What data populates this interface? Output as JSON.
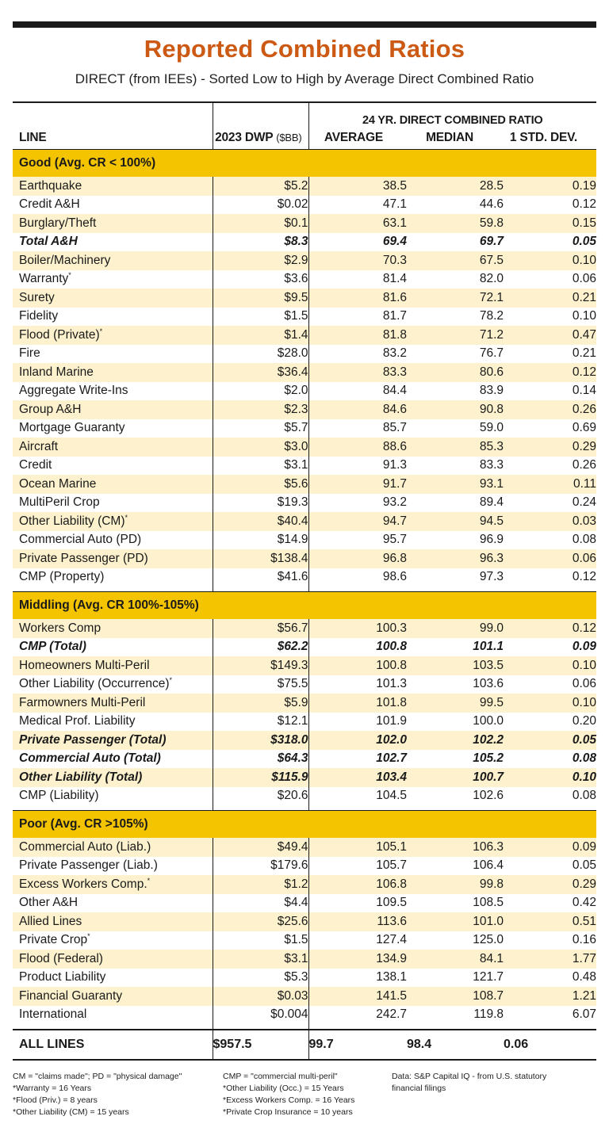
{
  "title": "Reported Combined Ratios",
  "subtitle": "DIRECT (from IEEs) - Sorted Low to High by Average Direct Combined Ratio",
  "header": {
    "span_label": "24 YR. DIRECT COMBINED RATIO",
    "line": "LINE",
    "dwp": "2023 DWP",
    "dwp_unit": "($BB)",
    "average": "AVERAGE",
    "median": "MEDIAN",
    "std": "1 STD. DEV."
  },
  "sections": [
    {
      "name": "Good (Avg. CR < 100%)",
      "rows": [
        {
          "line": "Earthquake",
          "sup": "",
          "dwp": "$5.2",
          "avg": "38.5",
          "median": "28.5",
          "std": "0.19",
          "bold": false
        },
        {
          "line": "Credit A&H",
          "sup": "",
          "dwp": "$0.02",
          "avg": "47.1",
          "median": "44.6",
          "std": "0.12",
          "bold": false
        },
        {
          "line": "Burglary/Theft",
          "sup": "",
          "dwp": "$0.1",
          "avg": "63.1",
          "median": "59.8",
          "std": "0.15",
          "bold": false
        },
        {
          "line": "Total A&H",
          "sup": "",
          "dwp": "$8.3",
          "avg": "69.4",
          "median": "69.7",
          "std": "0.05",
          "bold": true
        },
        {
          "line": "Boiler/Machinery",
          "sup": "",
          "dwp": "$2.9",
          "avg": "70.3",
          "median": "67.5",
          "std": "0.10",
          "bold": false
        },
        {
          "line": "Warranty",
          "sup": "*",
          "dwp": "$3.6",
          "avg": "81.4",
          "median": "82.0",
          "std": "0.06",
          "bold": false
        },
        {
          "line": "Surety",
          "sup": "",
          "dwp": "$9.5",
          "avg": "81.6",
          "median": "72.1",
          "std": "0.21",
          "bold": false
        },
        {
          "line": "Fidelity",
          "sup": "",
          "dwp": "$1.5",
          "avg": "81.7",
          "median": "78.2",
          "std": "0.10",
          "bold": false
        },
        {
          "line": "Flood (Private)",
          "sup": "*",
          "dwp": "$1.4",
          "avg": "81.8",
          "median": "71.2",
          "std": "0.47",
          "bold": false
        },
        {
          "line": "Fire",
          "sup": "",
          "dwp": "$28.0",
          "avg": "83.2",
          "median": "76.7",
          "std": "0.21",
          "bold": false
        },
        {
          "line": "Inland Marine",
          "sup": "",
          "dwp": "$36.4",
          "avg": "83.3",
          "median": "80.6",
          "std": "0.12",
          "bold": false
        },
        {
          "line": "Aggregate Write-Ins",
          "sup": "",
          "dwp": "$2.0",
          "avg": "84.4",
          "median": "83.9",
          "std": "0.14",
          "bold": false
        },
        {
          "line": "Group A&H",
          "sup": "",
          "dwp": "$2.3",
          "avg": "84.6",
          "median": "90.8",
          "std": "0.26",
          "bold": false
        },
        {
          "line": "Mortgage Guaranty",
          "sup": "",
          "dwp": "$5.7",
          "avg": "85.7",
          "median": "59.0",
          "std": "0.69",
          "bold": false
        },
        {
          "line": "Aircraft",
          "sup": "",
          "dwp": "$3.0",
          "avg": "88.6",
          "median": "85.3",
          "std": "0.29",
          "bold": false
        },
        {
          "line": "Credit",
          "sup": "",
          "dwp": "$3.1",
          "avg": "91.3",
          "median": "83.3",
          "std": "0.26",
          "bold": false
        },
        {
          "line": "Ocean Marine",
          "sup": "",
          "dwp": "$5.6",
          "avg": "91.7",
          "median": "93.1",
          "std": "0.11",
          "bold": false
        },
        {
          "line": "MultiPeril Crop",
          "sup": "",
          "dwp": "$19.3",
          "avg": "93.2",
          "median": "89.4",
          "std": "0.24",
          "bold": false
        },
        {
          "line": "Other Liability (CM)",
          "sup": "*",
          "dwp": "$40.4",
          "avg": "94.7",
          "median": "94.5",
          "std": "0.03",
          "bold": false
        },
        {
          "line": "Commercial Auto (PD)",
          "sup": "",
          "dwp": "$14.9",
          "avg": "95.7",
          "median": "96.9",
          "std": "0.08",
          "bold": false
        },
        {
          "line": "Private Passenger (PD)",
          "sup": "",
          "dwp": "$138.4",
          "avg": "96.8",
          "median": "96.3",
          "std": "0.06",
          "bold": false
        },
        {
          "line": "CMP (Property)",
          "sup": "",
          "dwp": "$41.6",
          "avg": "98.6",
          "median": "97.3",
          "std": "0.12",
          "bold": false
        }
      ]
    },
    {
      "name": "Middling (Avg. CR 100%-105%)",
      "rows": [
        {
          "line": "Workers Comp",
          "sup": "",
          "dwp": "$56.7",
          "avg": "100.3",
          "median": "99.0",
          "std": "0.12",
          "bold": false
        },
        {
          "line": "CMP (Total)",
          "sup": "",
          "dwp": "$62.2",
          "avg": "100.8",
          "median": "101.1",
          "std": "0.09",
          "bold": true
        },
        {
          "line": "Homeowners Multi-Peril",
          "sup": "",
          "dwp": "$149.3",
          "avg": "100.8",
          "median": "103.5",
          "std": "0.10",
          "bold": false
        },
        {
          "line": "Other Liability (Occurrence)",
          "sup": "*",
          "dwp": "$75.5",
          "avg": "101.3",
          "median": "103.6",
          "std": "0.06",
          "bold": false
        },
        {
          "line": "Farmowners Multi-Peril",
          "sup": "",
          "dwp": "$5.9",
          "avg": "101.8",
          "median": "99.5",
          "std": "0.10",
          "bold": false
        },
        {
          "line": "Medical Prof. Liability",
          "sup": "",
          "dwp": "$12.1",
          "avg": "101.9",
          "median": "100.0",
          "std": "0.20",
          "bold": false
        },
        {
          "line": "Private Passenger (Total)",
          "sup": "",
          "dwp": "$318.0",
          "avg": "102.0",
          "median": "102.2",
          "std": "0.05",
          "bold": true
        },
        {
          "line": "Commercial Auto (Total)",
          "sup": "",
          "dwp": "$64.3",
          "avg": "102.7",
          "median": "105.2",
          "std": "0.08",
          "bold": true
        },
        {
          "line": "Other Liability (Total)",
          "sup": "",
          "dwp": "$115.9",
          "avg": "103.4",
          "median": "100.7",
          "std": "0.10",
          "bold": true
        },
        {
          "line": "CMP (Liability)",
          "sup": "",
          "dwp": "$20.6",
          "avg": "104.5",
          "median": "102.6",
          "std": "0.08",
          "bold": false
        }
      ]
    },
    {
      "name": "Poor (Avg. CR >105%)",
      "rows": [
        {
          "line": "Commercial Auto (Liab.)",
          "sup": "",
          "dwp": "$49.4",
          "avg": "105.1",
          "median": "106.3",
          "std": "0.09",
          "bold": false
        },
        {
          "line": "Private Passenger (Liab.)",
          "sup": "",
          "dwp": "$179.6",
          "avg": "105.7",
          "median": "106.4",
          "std": "0.05",
          "bold": false
        },
        {
          "line": "Excess Workers Comp.",
          "sup": "*",
          "dwp": "$1.2",
          "avg": "106.8",
          "median": "99.8",
          "std": "0.29",
          "bold": false
        },
        {
          "line": "Other A&H",
          "sup": "",
          "dwp": "$4.4",
          "avg": "109.5",
          "median": "108.5",
          "std": "0.42",
          "bold": false
        },
        {
          "line": "Allied Lines",
          "sup": "",
          "dwp": "$25.6",
          "avg": "113.6",
          "median": "101.0",
          "std": "0.51",
          "bold": false
        },
        {
          "line": "Private Crop",
          "sup": "*",
          "dwp": "$1.5",
          "avg": "127.4",
          "median": "125.0",
          "std": "0.16",
          "bold": false
        },
        {
          "line": "Flood (Federal)",
          "sup": "",
          "dwp": "$3.1",
          "avg": "134.9",
          "median": "84.1",
          "std": "1.77",
          "bold": false
        },
        {
          "line": "Product Liability",
          "sup": "",
          "dwp": "$5.3",
          "avg": "138.1",
          "median": "121.7",
          "std": "0.48",
          "bold": false
        },
        {
          "line": "Financial Guaranty",
          "sup": "",
          "dwp": "$0.03",
          "avg": "141.5",
          "median": "108.7",
          "std": "1.21",
          "bold": false
        },
        {
          "line": "International",
          "sup": "",
          "dwp": "$0.004",
          "avg": "242.7",
          "median": "119.8",
          "std": "6.07",
          "bold": false
        }
      ]
    }
  ],
  "total": {
    "line": "ALL LINES",
    "dwp": "$957.5",
    "avg": "99.7",
    "median": "98.4",
    "std": "0.06"
  },
  "footnotes": {
    "col1": [
      "CM = \"claims made\"; PD = \"physical damage\"",
      "*Warranty = 16 Years",
      "*Flood (Priv.) = 8 years",
      "*Other Liability (CM) = 15 years"
    ],
    "col2": [
      "CMP = \"commercial multi-peril\"",
      "*Other Liability (Occ.) = 15 Years",
      "*Excess Workers Comp. = 16 Years",
      "*Private Crop Insurance = 10 years"
    ],
    "col3": [
      "Data: S&P Capital IQ - from U.S. statutory",
      "financial filings"
    ]
  },
  "colors": {
    "accent": "#cc5a14",
    "section_bar": "#f5c400",
    "row_highlight": "#fdf2cd",
    "rule": "#1a1a1a"
  }
}
